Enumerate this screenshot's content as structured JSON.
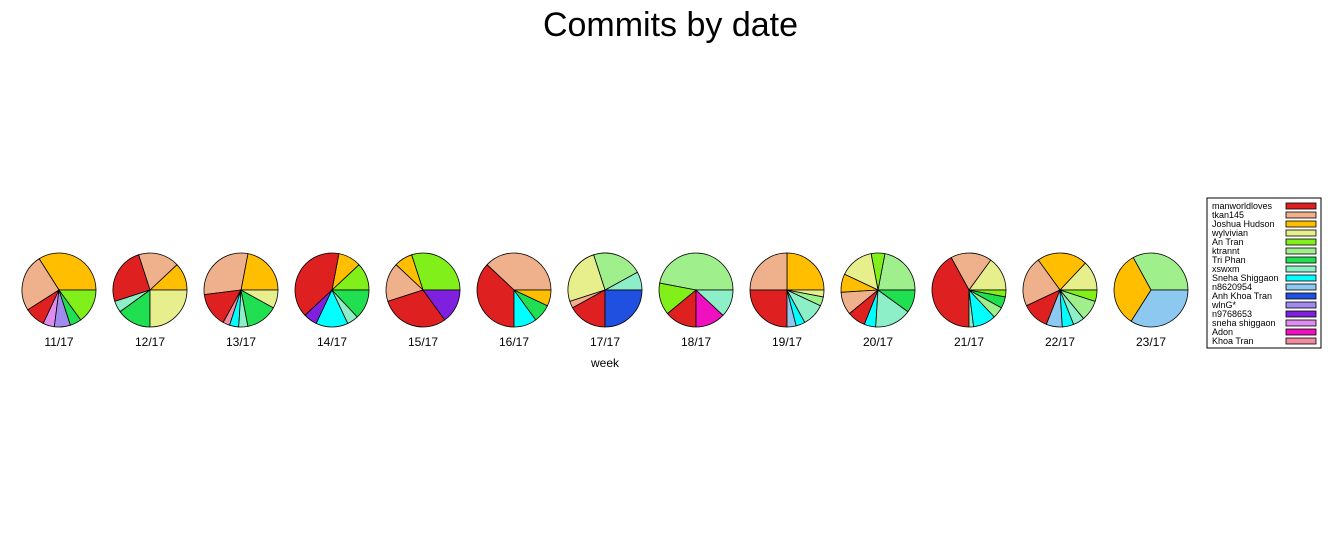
{
  "chart_data": {
    "type": "pie",
    "title": "Commits by date",
    "xlabel": "week",
    "legend_position": "right",
    "authors": [
      {
        "name": "manworldloves",
        "color": "#df2020"
      },
      {
        "name": "tkan145",
        "color": "#efb08c"
      },
      {
        "name": "Joshua Hudson",
        "color": "#ffbf00"
      },
      {
        "name": "wylvivian",
        "color": "#e6ef8c"
      },
      {
        "name": "An Tran",
        "color": "#80ef1a"
      },
      {
        "name": "ktrannt",
        "color": "#9fef8c"
      },
      {
        "name": "Tri Phan",
        "color": "#20df50"
      },
      {
        "name": "xswxm",
        "color": "#8cefc8"
      },
      {
        "name": "Sneha Shiggaon",
        "color": "#00ffff"
      },
      {
        "name": "n8620954",
        "color": "#8cc8ef"
      },
      {
        "name": "Anh Khoa Tran",
        "color": "#2050df"
      },
      {
        "name": "wlnG*",
        "color": "#a08cef"
      },
      {
        "name": "n9768653",
        "color": "#8020df"
      },
      {
        "name": "sneha shiggaon",
        "color": "#df8cef"
      },
      {
        "name": "Adon",
        "color": "#ef10c0"
      },
      {
        "name": "Khoa Tran",
        "color": "#ef8ca0"
      }
    ],
    "categories": [
      "11/17",
      "12/17",
      "13/17",
      "14/17",
      "15/17",
      "16/17",
      "17/17",
      "18/17",
      "19/17",
      "20/17",
      "21/17",
      "22/17",
      "23/17"
    ],
    "pies": [
      {
        "week": "11/17",
        "slices": [
          {
            "author": "Joshua Hudson",
            "value": 34
          },
          {
            "author": "tkan145",
            "value": 25
          },
          {
            "author": "manworldloves",
            "value": 9
          },
          {
            "author": "sneha shiggaon",
            "value": 5
          },
          {
            "author": "wlnG*",
            "value": 7
          },
          {
            "author": "Tri Phan",
            "value": 5
          },
          {
            "author": "An Tran",
            "value": 15
          }
        ]
      },
      {
        "week": "12/17",
        "slices": [
          {
            "author": "Joshua Hudson",
            "value": 12
          },
          {
            "author": "tkan145",
            "value": 18
          },
          {
            "author": "manworldloves",
            "value": 25
          },
          {
            "author": "xswxm",
            "value": 5
          },
          {
            "author": "Tri Phan",
            "value": 15
          },
          {
            "author": "wylvivian",
            "value": 25
          }
        ]
      },
      {
        "week": "13/17",
        "slices": [
          {
            "author": "Joshua Hudson",
            "value": 22
          },
          {
            "author": "tkan145",
            "value": 30
          },
          {
            "author": "manworldloves",
            "value": 15
          },
          {
            "author": "Khoa Tran",
            "value": 3
          },
          {
            "author": "Sneha Shiggaon",
            "value": 4
          },
          {
            "author": "xswxm",
            "value": 4
          },
          {
            "author": "Tri Phan",
            "value": 14
          },
          {
            "author": "wylvivian",
            "value": 8
          }
        ]
      },
      {
        "week": "14/17",
        "slices": [
          {
            "author": "An Tran",
            "value": 12
          },
          {
            "author": "Joshua Hudson",
            "value": 10
          },
          {
            "author": "manworldloves",
            "value": 40
          },
          {
            "author": "n9768653",
            "value": 6
          },
          {
            "author": "Sneha Shiggaon",
            "value": 14
          },
          {
            "author": "xswxm",
            "value": 5
          },
          {
            "author": "Tri Phan",
            "value": 13
          }
        ]
      },
      {
        "week": "15/17",
        "slices": [
          {
            "author": "An Tran",
            "value": 30
          },
          {
            "author": "Joshua Hudson",
            "value": 8
          },
          {
            "author": "tkan145",
            "value": 17
          },
          {
            "author": "manworldloves",
            "value": 30
          },
          {
            "author": "n9768653",
            "value": 15
          }
        ]
      },
      {
        "week": "16/17",
        "slices": [
          {
            "author": "tkan145",
            "value": 38
          },
          {
            "author": "manworldloves",
            "value": 37
          },
          {
            "author": "Sneha Shiggaon",
            "value": 10
          },
          {
            "author": "Tri Phan",
            "value": 8
          },
          {
            "author": "Joshua Hudson",
            "value": 7
          }
        ]
      },
      {
        "week": "17/17",
        "slices": [
          {
            "author": "xswxm",
            "value": 8
          },
          {
            "author": "ktrannt",
            "value": 22
          },
          {
            "author": "wylvivian",
            "value": 25
          },
          {
            "author": "tkan145",
            "value": 3
          },
          {
            "author": "manworldloves",
            "value": 17
          },
          {
            "author": "Anh Khoa Tran",
            "value": 25
          }
        ]
      },
      {
        "week": "18/17",
        "slices": [
          {
            "author": "ktrannt",
            "value": 47
          },
          {
            "author": "An Tran",
            "value": 14
          },
          {
            "author": "manworldloves",
            "value": 14
          },
          {
            "author": "Adon",
            "value": 13
          },
          {
            "author": "xswxm",
            "value": 12
          }
        ]
      },
      {
        "week": "19/17",
        "slices": [
          {
            "author": "Joshua Hudson",
            "value": 25
          },
          {
            "author": "tkan145",
            "value": 25
          },
          {
            "author": "manworldloves",
            "value": 25
          },
          {
            "author": "n8620954",
            "value": 4
          },
          {
            "author": "Sneha Shiggaon",
            "value": 4
          },
          {
            "author": "xswxm",
            "value": 10
          },
          {
            "author": "ktrannt",
            "value": 4
          },
          {
            "author": "wylvivian",
            "value": 3
          }
        ]
      },
      {
        "week": "20/17",
        "slices": [
          {
            "author": "ktrannt",
            "value": 22
          },
          {
            "author": "An Tran",
            "value": 6
          },
          {
            "author": "wylvivian",
            "value": 15
          },
          {
            "author": "Joshua Hudson",
            "value": 8
          },
          {
            "author": "tkan145",
            "value": 10
          },
          {
            "author": "manworldloves",
            "value": 8
          },
          {
            "author": "Sneha Shiggaon",
            "value": 5
          },
          {
            "author": "xswxm",
            "value": 16
          },
          {
            "author": "Tri Phan",
            "value": 10
          }
        ]
      },
      {
        "week": "21/17",
        "slices": [
          {
            "author": "wylvivian",
            "value": 15
          },
          {
            "author": "tkan145",
            "value": 18
          },
          {
            "author": "manworldloves",
            "value": 42
          },
          {
            "author": "xswxm",
            "value": 2
          },
          {
            "author": "Sneha Shiggaon",
            "value": 10
          },
          {
            "author": "ktrannt",
            "value": 5
          },
          {
            "author": "Tri Phan",
            "value": 5
          },
          {
            "author": "An Tran",
            "value": 3
          }
        ]
      },
      {
        "week": "22/17",
        "slices": [
          {
            "author": "wylvivian",
            "value": 13
          },
          {
            "author": "Joshua Hudson",
            "value": 22
          },
          {
            "author": "tkan145",
            "value": 22
          },
          {
            "author": "manworldloves",
            "value": 12
          },
          {
            "author": "n8620954",
            "value": 7
          },
          {
            "author": "Sneha Shiggaon",
            "value": 5
          },
          {
            "author": "xswxm",
            "value": 5
          },
          {
            "author": "ktrannt",
            "value": 9
          },
          {
            "author": "An Tran",
            "value": 5
          }
        ]
      },
      {
        "week": "23/17",
        "slices": [
          {
            "author": "ktrannt",
            "value": 33
          },
          {
            "author": "Joshua Hudson",
            "value": 33
          },
          {
            "author": "n8620954",
            "value": 34
          }
        ]
      }
    ]
  }
}
